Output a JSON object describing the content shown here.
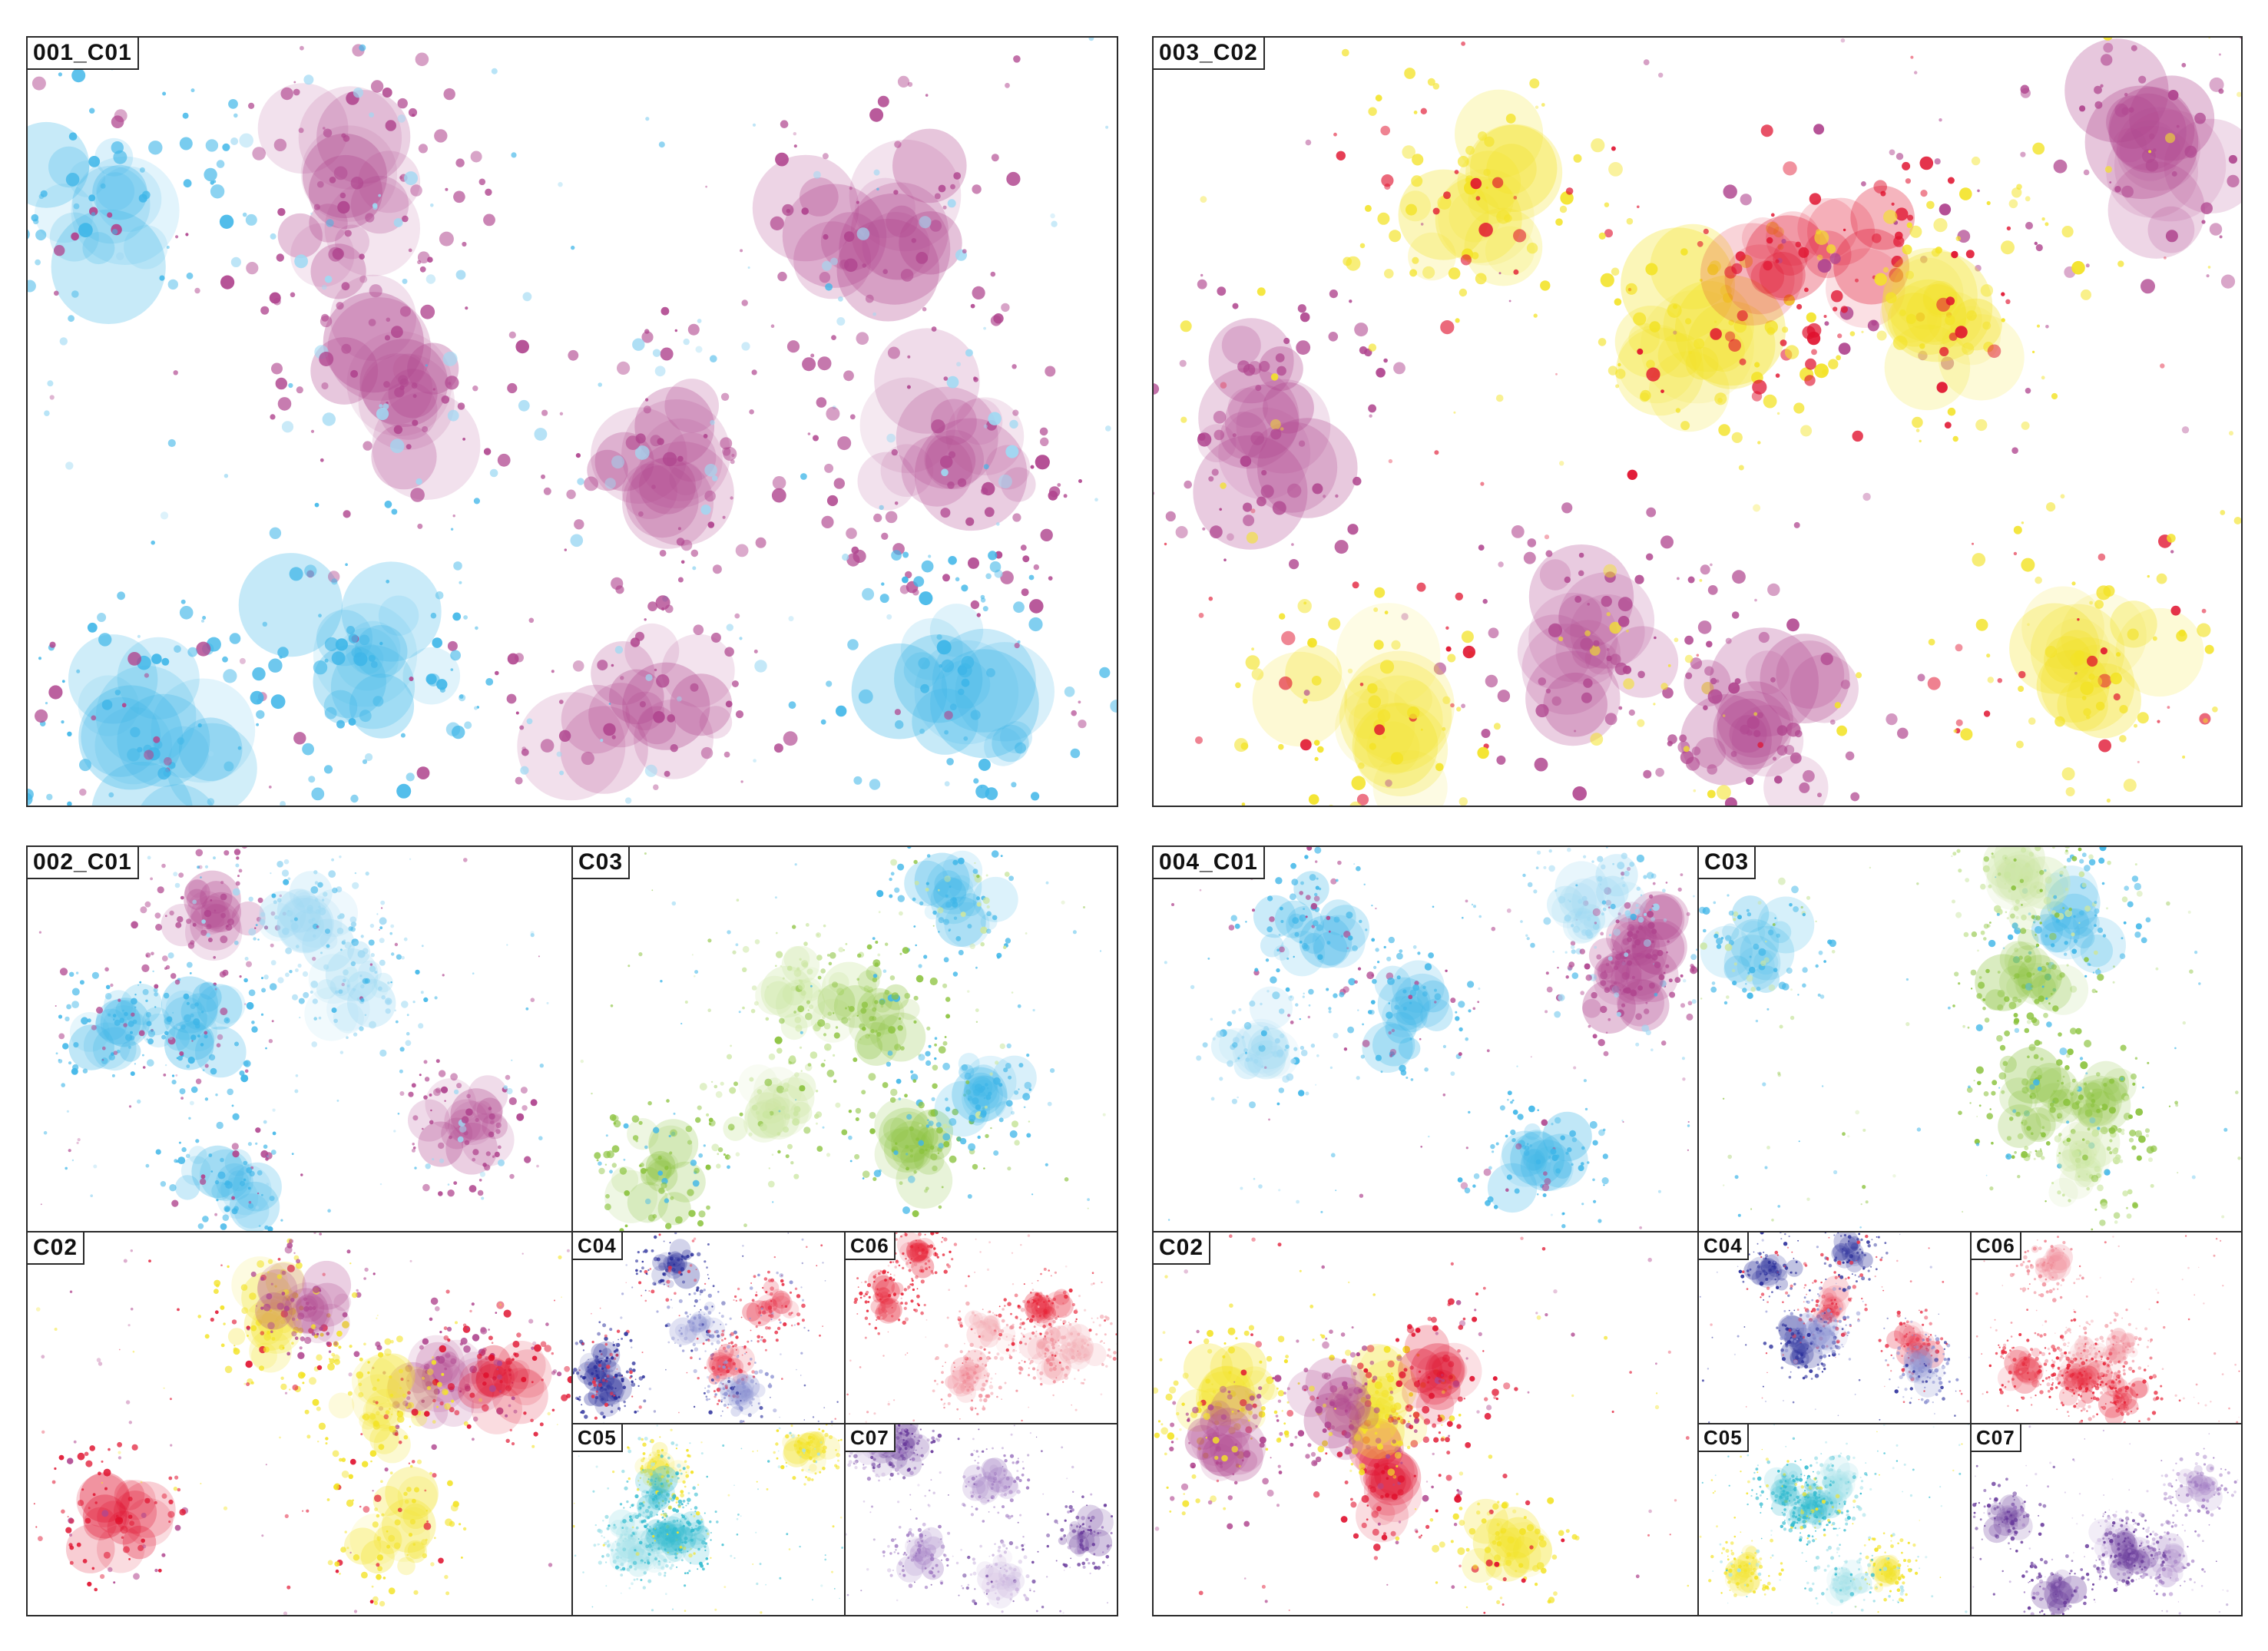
{
  "colors": {
    "C01": [
      "#3fb6e8",
      "#b0468f",
      "#9fd9f3"
    ],
    "C02": [
      "#f3e327",
      "#e0112e",
      "#b0468f"
    ],
    "C03": [
      "#8cc33f",
      "#3fb6e8",
      "#cbe6a2"
    ],
    "C04": [
      "#2b2f9b",
      "#e8334a",
      "#9095d3"
    ],
    "C05": [
      "#35bcd0",
      "#f3e327",
      "#a6e2ea"
    ],
    "C06": [
      "#e8263a",
      "#f08a96",
      "#f4b2b9"
    ],
    "C07": [
      "#6a3c9c",
      "#a17cc3",
      "#cdb8e0"
    ]
  },
  "blocks": [
    {
      "id": "001",
      "tiles": [
        {
          "label": "001_C01",
          "palette": "C01"
        }
      ]
    },
    {
      "id": "003",
      "tiles": [
        {
          "label": "003_C02",
          "palette": "C02"
        }
      ]
    },
    {
      "id": "002",
      "tiles": [
        {
          "label": "002_C01",
          "palette": "C01"
        },
        {
          "label": "C03",
          "palette": "C03"
        },
        {
          "label": "C02",
          "palette": "C02"
        },
        {
          "label": "C04",
          "palette": "C04"
        },
        {
          "label": "C06",
          "palette": "C06"
        },
        {
          "label": "C05",
          "palette": "C05"
        },
        {
          "label": "C07",
          "palette": "C07"
        }
      ]
    },
    {
      "id": "004",
      "tiles": [
        {
          "label": "004_C01",
          "palette": "C01"
        },
        {
          "label": "C03",
          "palette": "C03"
        },
        {
          "label": "C02",
          "palette": "C02"
        },
        {
          "label": "C04",
          "palette": "C04"
        },
        {
          "label": "C06",
          "palette": "C06"
        },
        {
          "label": "C05",
          "palette": "C05"
        },
        {
          "label": "C07",
          "palette": "C07"
        }
      ]
    }
  ]
}
